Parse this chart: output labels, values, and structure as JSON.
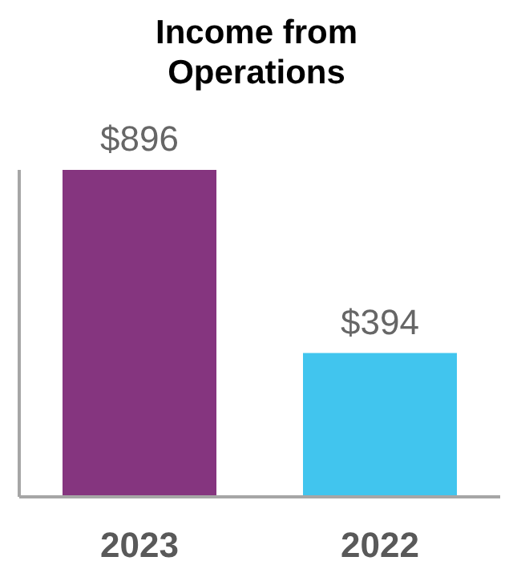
{
  "chart_data": {
    "type": "bar",
    "title": "Income from Operations",
    "categories": [
      "2023",
      "2022"
    ],
    "values": [
      896,
      394
    ],
    "colors": [
      "#85357f",
      "#41c5ee"
    ],
    "value_labels": [
      "$896",
      "$394"
    ],
    "tick_labels": "x",
    "grid": false,
    "legend": false
  }
}
